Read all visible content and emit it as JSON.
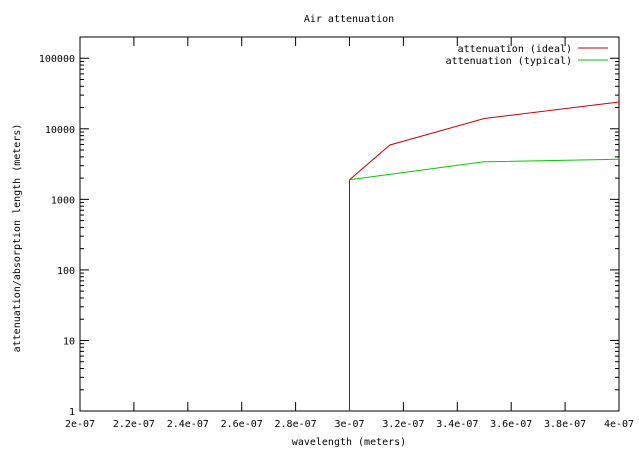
{
  "chart_data": {
    "type": "line",
    "title": "Air attenuation",
    "xlabel": "wavelength (meters)",
    "ylabel": "attenuation/absorption length (meters)",
    "x_scale": "linear",
    "y_scale": "log",
    "xlim": [
      2e-07,
      4e-07
    ],
    "ylim": [
      1,
      200000
    ],
    "grid": false,
    "legend_position": "top-right",
    "x_ticks": [
      2e-07,
      2.2e-07,
      2.4e-07,
      2.6e-07,
      2.8e-07,
      3e-07,
      3.2e-07,
      3.4e-07,
      3.6e-07,
      3.8e-07,
      4e-07
    ],
    "x_tick_labels": [
      "2e-07",
      "2.2e-07",
      "2.4e-07",
      "2.6e-07",
      "2.8e-07",
      "3e-07",
      "3.2e-07",
      "3.4e-07",
      "3.6e-07",
      "3.8e-07",
      "4e-07"
    ],
    "y_ticks": [
      1,
      10,
      100,
      1000,
      10000,
      100000
    ],
    "y_tick_labels": [
      "1",
      "10",
      "100",
      "1000",
      "10000",
      "100000"
    ],
    "series": [
      {
        "name": "attenuation (ideal)",
        "color": "#cc0000",
        "x": [
          3e-07,
          3e-07,
          3.15e-07,
          3.5e-07,
          4e-07
        ],
        "y": [
          1,
          1900,
          5900,
          14000,
          24000
        ]
      },
      {
        "name": "attenuation (typical)",
        "color": "#00cc00",
        "x": [
          3e-07,
          3.5e-07,
          4e-07
        ],
        "y": [
          1900,
          3400,
          3700
        ]
      }
    ]
  }
}
